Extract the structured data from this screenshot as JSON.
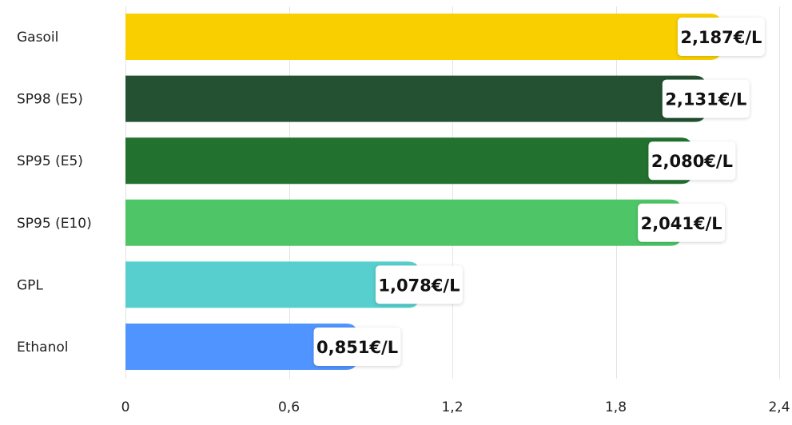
{
  "chart_data": {
    "type": "bar",
    "orientation": "horizontal",
    "title": "",
    "xlabel": "",
    "ylabel": "",
    "categories": [
      "Gasoil",
      "SP98 (E5)",
      "SP95 (E5)",
      "SP95 (E10)",
      "GPL",
      "Ethanol"
    ],
    "values": [
      2.187,
      2.131,
      2.08,
      2.041,
      1.078,
      0.851
    ],
    "value_labels": [
      "2,187€/L",
      "2,131€/L",
      "2,080€/L",
      "2,041€/L",
      "1,078€/L",
      "0,851€/L"
    ],
    "colors": [
      "#f9cf00",
      "#235132",
      "#22712f",
      "#4ec567",
      "#56cfce",
      "#5095ff"
    ],
    "xlim": [
      0,
      2.4
    ],
    "x_ticks": [
      0,
      0.6,
      1.2,
      1.8,
      2.4
    ],
    "x_tick_labels": [
      "0",
      "0,6",
      "1,2",
      "1,8",
      "2,4"
    ],
    "grid": "vertical",
    "legend": "none"
  }
}
